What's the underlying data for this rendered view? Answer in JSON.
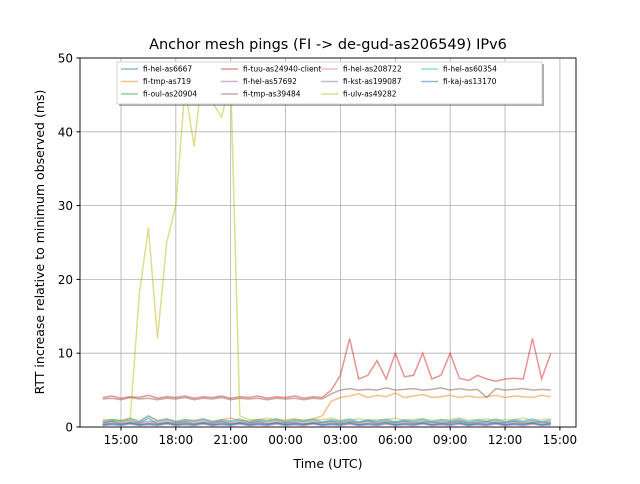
{
  "chart_data": {
    "type": "line",
    "title": "Anchor mesh pings (FI -> de-gud-as206549) IPv6",
    "xlabel": "Time (UTC)",
    "ylabel": "RTT increase relative to minimum observed (ms)",
    "ylim": [
      0,
      50
    ],
    "xlim_hours": [
      12.76,
      39.88
    ],
    "grid": true,
    "legend_placement": "top-center",
    "xticks": [
      {
        "h": 15,
        "label": "15:00"
      },
      {
        "h": 18,
        "label": "18:00"
      },
      {
        "h": 21,
        "label": "21:00"
      },
      {
        "h": 24,
        "label": "00:00"
      },
      {
        "h": 27,
        "label": "03:00"
      },
      {
        "h": 30,
        "label": "06:00"
      },
      {
        "h": 33,
        "label": "09:00"
      },
      {
        "h": 36,
        "label": "12:00"
      },
      {
        "h": 39,
        "label": "15:00"
      }
    ],
    "yticks": [
      0,
      10,
      20,
      30,
      40,
      50
    ],
    "x_hours": [
      14,
      14.5,
      15,
      15.5,
      16,
      16.5,
      17,
      17.5,
      18,
      18.5,
      19,
      19.5,
      20,
      20.5,
      21,
      21.5,
      22,
      22.5,
      23,
      23.5,
      24,
      24.5,
      25,
      25.5,
      26,
      26.5,
      27,
      27.5,
      28,
      28.5,
      29,
      29.5,
      30,
      30.5,
      31,
      31.5,
      32,
      32.5,
      33,
      33.5,
      34,
      34.5,
      35,
      35.5,
      36,
      36.5,
      37,
      37.5,
      38,
      38.5
    ],
    "series": [
      {
        "name": "fi-hel-as6667",
        "color": "#1f77b4",
        "values": [
          0.5,
          0.8,
          0.4,
          0.6,
          0.5,
          1.2,
          0.4,
          0.6,
          0.5,
          0.7,
          0.4,
          0.6,
          0.5,
          0.8,
          0.4,
          0.6,
          0.5,
          0.7,
          0.4,
          0.6,
          0.5,
          0.6,
          0.4,
          0.5,
          0.6,
          0.8,
          0.5,
          0.7,
          0.6,
          0.9,
          0.5,
          0.7,
          0.6,
          0.8,
          0.5,
          0.6,
          0.7,
          0.5,
          0.6,
          0.8,
          0.5,
          0.6,
          0.7,
          0.5,
          0.6,
          0.8,
          0.5,
          0.6,
          0.7,
          0.5
        ]
      },
      {
        "name": "fi-tmp-as719",
        "color": "#ff7f0e",
        "values": [
          0.8,
          1,
          0.9,
          1.2,
          0.8,
          1.5,
          0.9,
          1.1,
          0.8,
          1,
          0.9,
          1.1,
          0.8,
          1,
          1.2,
          0.9,
          0.8,
          1,
          0.9,
          1.1,
          0.8,
          1,
          0.9,
          1.1,
          1.5,
          3.5,
          4,
          4.2,
          4.5,
          4,
          4.3,
          4.1,
          4.6,
          4,
          4.2,
          4.4,
          4,
          4.1,
          4.3,
          4,
          4.2,
          4,
          4.1,
          4.3,
          4,
          4.2,
          4.1,
          4,
          4.3,
          4.1
        ]
      },
      {
        "name": "fi-oul-as20904",
        "color": "#2ca02c",
        "values": [
          0.3,
          0.5,
          0.4,
          0.6,
          0.3,
          0.5,
          0.4,
          0.6,
          0.3,
          0.5,
          0.4,
          0.6,
          0.3,
          0.5,
          0.4,
          0.6,
          0.3,
          0.5,
          0.4,
          0.6,
          0.3,
          0.5,
          0.4,
          0.6,
          0.3,
          0.5,
          0.4,
          0.6,
          0.3,
          0.5,
          0.4,
          0.6,
          0.3,
          0.5,
          0.4,
          0.6,
          0.3,
          0.5,
          0.4,
          0.6,
          0.3,
          0.5,
          0.4,
          0.6,
          0.3,
          0.5,
          0.4,
          0.6,
          0.3,
          0.5
        ]
      },
      {
        "name": "fi-tuu-as24940-client",
        "color": "#d62728",
        "values": [
          4,
          4.2,
          3.9,
          4.1,
          4,
          4.3,
          3.9,
          4.1,
          4,
          4.2,
          3.9,
          4.1,
          4,
          4.2,
          3.9,
          4.1,
          4,
          4.2,
          3.9,
          4.1,
          4,
          4.2,
          3.9,
          4.1,
          4,
          5,
          7,
          12,
          6.5,
          7,
          9,
          6.5,
          10,
          6.8,
          7,
          10,
          6.5,
          7,
          10,
          6.6,
          6.3,
          7,
          6.5,
          6.2,
          6.5,
          6.6,
          6.5,
          12,
          6.5,
          10
        ]
      },
      {
        "name": "fi-hel-as57692",
        "color": "#9467bd",
        "values": [
          0.2,
          0.3,
          0.2,
          0.4,
          0.2,
          0.3,
          0.2,
          0.4,
          0.2,
          0.3,
          0.2,
          0.4,
          0.2,
          0.3,
          0.2,
          0.4,
          0.2,
          0.3,
          0.2,
          0.4,
          0.2,
          0.3,
          0.2,
          0.4,
          0.2,
          0.3,
          0.2,
          0.4,
          0.2,
          0.3,
          0.2,
          0.4,
          0.2,
          0.3,
          0.2,
          0.4,
          0.2,
          0.3,
          0.2,
          0.4,
          0.2,
          0.3,
          0.2,
          0.4,
          0.2,
          0.3,
          0.2,
          0.4,
          0.2,
          0.3
        ]
      },
      {
        "name": "fi-tmp-as39484",
        "color": "#8c564b",
        "values": [
          3.8,
          3.9,
          3.7,
          4,
          3.8,
          3.9,
          3.7,
          3.9,
          3.8,
          4,
          3.7,
          3.9,
          3.8,
          4,
          3.7,
          3.9,
          3.8,
          3.9,
          3.7,
          3.9,
          3.8,
          3.9,
          3.7,
          3.9,
          3.8,
          4.5,
          5,
          5.2,
          5,
          5.1,
          5,
          5.3,
          5,
          5.1,
          5.2,
          5,
          5.1,
          5.3,
          5,
          5.2,
          5,
          5.1,
          4,
          5.2,
          5,
          5.1,
          5.2,
          5,
          5.1,
          5
        ]
      },
      {
        "name": "fi-hel-as208722",
        "color": "#e377c2",
        "values": [
          0.4,
          0.6,
          0.5,
          0.7,
          0.4,
          0.6,
          0.5,
          0.7,
          0.4,
          0.6,
          0.5,
          0.7,
          0.4,
          0.6,
          0.5,
          0.7,
          0.4,
          0.6,
          0.5,
          0.7,
          0.4,
          0.6,
          0.5,
          0.7,
          0.4,
          0.6,
          0.5,
          0.7,
          0.4,
          0.6,
          0.5,
          0.7,
          0.4,
          0.6,
          0.5,
          0.7,
          0.4,
          0.6,
          0.5,
          0.7,
          0.4,
          0.6,
          0.5,
          0.7,
          0.4,
          0.6,
          0.5,
          0.7,
          0.4,
          0.6
        ]
      },
      {
        "name": "fi-kst-as199087",
        "color": "#7f7f7f",
        "values": [
          0.6,
          0.8,
          0.7,
          0.9,
          0.6,
          0.8,
          0.7,
          0.9,
          0.6,
          0.8,
          0.7,
          0.9,
          0.6,
          0.8,
          0.7,
          0.9,
          0.6,
          0.8,
          0.7,
          0.9,
          0.6,
          0.8,
          0.7,
          0.9,
          0.6,
          0.8,
          0.7,
          0.9,
          0.6,
          0.8,
          0.7,
          0.9,
          0.6,
          0.8,
          0.7,
          0.9,
          0.6,
          0.8,
          0.7,
          0.9,
          0.6,
          0.8,
          0.7,
          0.9,
          0.6,
          0.8,
          0.7,
          0.9,
          0.6,
          0.8
        ]
      },
      {
        "name": "fi-ulv-as49282",
        "color": "#bcbd22",
        "values": [
          1,
          1,
          0.8,
          1,
          18,
          27,
          12,
          25,
          30,
          46,
          38,
          49,
          44,
          42,
          47,
          1.5,
          1,
          1,
          1.2,
          0.9,
          1,
          1.1,
          0.9,
          1,
          1,
          1.2,
          0.9,
          1,
          1.1,
          0.9,
          1,
          1,
          1.2,
          0.9,
          1,
          1.1,
          0.9,
          1,
          1,
          1.2,
          0.9,
          1,
          1.1,
          0.9,
          1,
          1,
          1.2,
          0.9,
          1,
          1.1
        ]
      },
      {
        "name": "fi-hel-as60354",
        "color": "#17becf",
        "values": [
          0.7,
          1,
          0.8,
          1.1,
          0.7,
          1.5,
          0.8,
          1.1,
          0.7,
          1,
          0.8,
          1.1,
          0.7,
          1,
          0.8,
          1.1,
          0.7,
          1,
          0.8,
          1.1,
          0.7,
          1,
          0.8,
          1.1,
          0.7,
          1,
          0.8,
          1.1,
          0.7,
          1,
          0.8,
          1.1,
          0.7,
          1,
          0.8,
          1.1,
          0.7,
          1,
          0.8,
          1.1,
          0.7,
          1,
          0.8,
          1.1,
          0.7,
          1,
          0.8,
          1.1,
          0.7,
          1
        ]
      },
      {
        "name": "fi-kaj-as13170",
        "color": "#1f77b4",
        "values": [
          0.3,
          0.4,
          0.3,
          0.5,
          0.3,
          0.4,
          0.3,
          0.5,
          0.3,
          0.4,
          0.3,
          0.5,
          0.3,
          0.4,
          0.3,
          0.5,
          0.3,
          0.4,
          0.3,
          0.5,
          0.3,
          0.4,
          0.3,
          0.5,
          0.3,
          0.4,
          0.3,
          0.5,
          0.3,
          0.4,
          0.3,
          0.5,
          0.3,
          0.4,
          0.3,
          0.5,
          0.3,
          0.4,
          0.3,
          0.5,
          0.3,
          0.4,
          0.3,
          0.5,
          0.3,
          0.4,
          0.3,
          0.5,
          0.3,
          0.4
        ]
      }
    ]
  }
}
